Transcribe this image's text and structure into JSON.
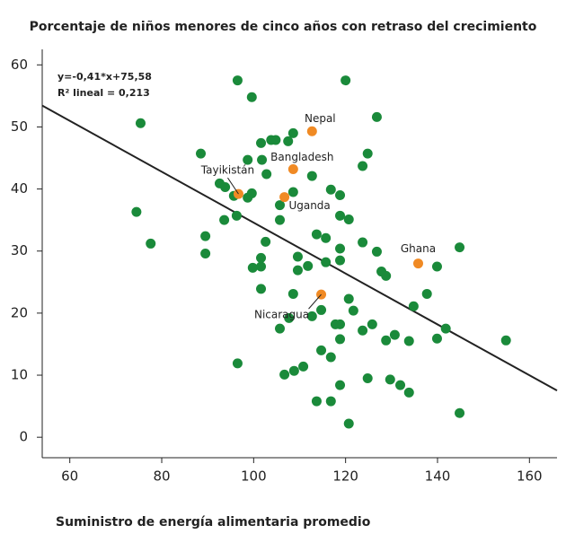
{
  "chart_data": {
    "type": "scatter",
    "title": "Porcentaje de niños menores de cinco años con retraso del crecimiento",
    "x_label": "Suministro de energía alimentaria promedio",
    "xlim": [
      54,
      166
    ],
    "ylim": [
      -3.3,
      62.5
    ],
    "xticks": [
      60,
      80,
      100,
      120,
      140,
      160
    ],
    "yticks": [
      0,
      10,
      20,
      30,
      40,
      50,
      60
    ],
    "regression": {
      "slope": -0.41,
      "intercept": 75.58,
      "label": "y=-0,41*x+75,58",
      "r2_label": "R² lineal = 0,213",
      "color": "#222222"
    },
    "series": [
      {
        "color": "#1a8a3a",
        "x": [
          75.4,
          74.5,
          77.6,
          88.5,
          89.5,
          89.5,
          92.6,
          93.8,
          93.6,
          96.5,
          99.6,
          95.7,
          98.7,
          98.7,
          99.6,
          96.3,
          101.6,
          101.8,
          102.8,
          103.8,
          104.8,
          107.5,
          108.6,
          112.7,
          120.0,
          126.8,
          124.8,
          123.7,
          116.8,
          118.8,
          120.7,
          118.8,
          105.7,
          105.7,
          108.6,
          102.6,
          101.6,
          99.8,
          101.6,
          101.6,
          109.6,
          109.6,
          111.8,
          113.7,
          115.7,
          118.8,
          118.8,
          115.7,
          123.7,
          126.8,
          127.8,
          128.8,
          144.8,
          139.9,
          137.7,
          134.8,
          141.8,
          139.9,
          154.9,
          144.8,
          108.6,
          114.7,
          112.7,
          107.7,
          105.7,
          120.7,
          121.7,
          117.8,
          118.8,
          123.7,
          125.8,
          128.8,
          130.7,
          133.8,
          118.8,
          114.7,
          116.8,
          96.5,
          106.7,
          108.8,
          110.8,
          118.8,
          124.8,
          129.7,
          131.9,
          133.8,
          113.7,
          116.8,
          120.7
        ],
        "values": [
          50.6,
          36.3,
          31.2,
          45.7,
          32.4,
          29.6,
          40.9,
          40.3,
          35.0,
          57.5,
          54.8,
          38.9,
          44.7,
          38.6,
          39.3,
          35.7,
          47.4,
          44.7,
          42.4,
          47.9,
          47.9,
          47.7,
          49.0,
          42.1,
          57.5,
          51.6,
          45.7,
          43.7,
          39.9,
          39.0,
          35.1,
          35.7,
          37.4,
          35.0,
          39.5,
          31.5,
          28.9,
          27.3,
          27.5,
          23.9,
          29.1,
          26.9,
          27.6,
          32.7,
          32.1,
          30.4,
          28.5,
          28.2,
          31.4,
          29.9,
          26.7,
          26.0,
          30.6,
          27.5,
          23.1,
          21.1,
          17.5,
          15.9,
          15.6,
          3.9,
          23.1,
          20.5,
          19.5,
          19.2,
          17.5,
          22.3,
          20.4,
          18.2,
          18.2,
          17.2,
          18.2,
          15.6,
          16.5,
          15.5,
          15.8,
          14.0,
          12.9,
          11.9,
          10.1,
          10.7,
          11.4,
          8.4,
          9.5,
          9.3,
          8.4,
          7.2,
          5.8,
          5.8,
          2.2
        ]
      },
      {
        "color": "#f08a24",
        "labels": [
          "Nepal",
          "Bangladesh",
          "Tayikistán",
          "Uganda",
          "Ghana",
          "Nicaragua"
        ],
        "x": [
          112.7,
          108.6,
          96.7,
          106.7,
          135.8,
          114.7
        ],
        "values": [
          49.3,
          43.2,
          39.2,
          38.7,
          28.0,
          23.0
        ]
      }
    ]
  }
}
